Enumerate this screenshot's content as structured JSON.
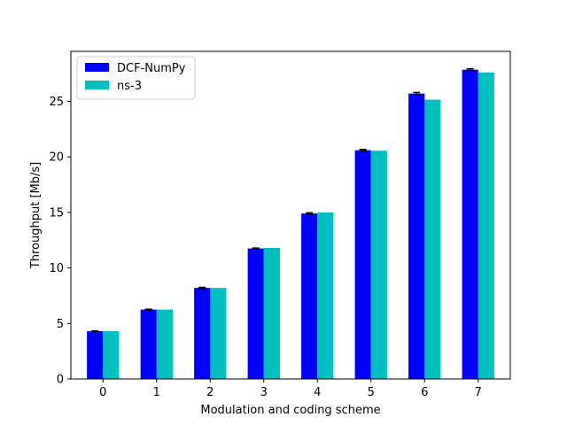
{
  "chart_data": {
    "type": "bar",
    "title": "",
    "xlabel": "Modulation and coding scheme",
    "ylabel": "Throughput [Mb/s]",
    "categories": [
      "0",
      "1",
      "2",
      "3",
      "4",
      "5",
      "6",
      "7"
    ],
    "ylim": [
      0,
      29.5
    ],
    "yticks": [
      0,
      5,
      10,
      15,
      20,
      25
    ],
    "grid": false,
    "legend_position": "top-left",
    "series": [
      {
        "name": "DCF-NumPy",
        "color": "#0000ff",
        "values": [
          4.3,
          6.25,
          8.2,
          11.75,
          14.9,
          20.6,
          25.7,
          27.85
        ],
        "errors": [
          0.02,
          0.03,
          0.05,
          0.04,
          0.06,
          0.07,
          0.1,
          0.08
        ]
      },
      {
        "name": "ns-3",
        "color": "#00bfbf",
        "values": [
          4.3,
          6.25,
          8.2,
          11.8,
          15.0,
          20.55,
          25.15,
          27.6
        ],
        "errors": null
      }
    ]
  }
}
